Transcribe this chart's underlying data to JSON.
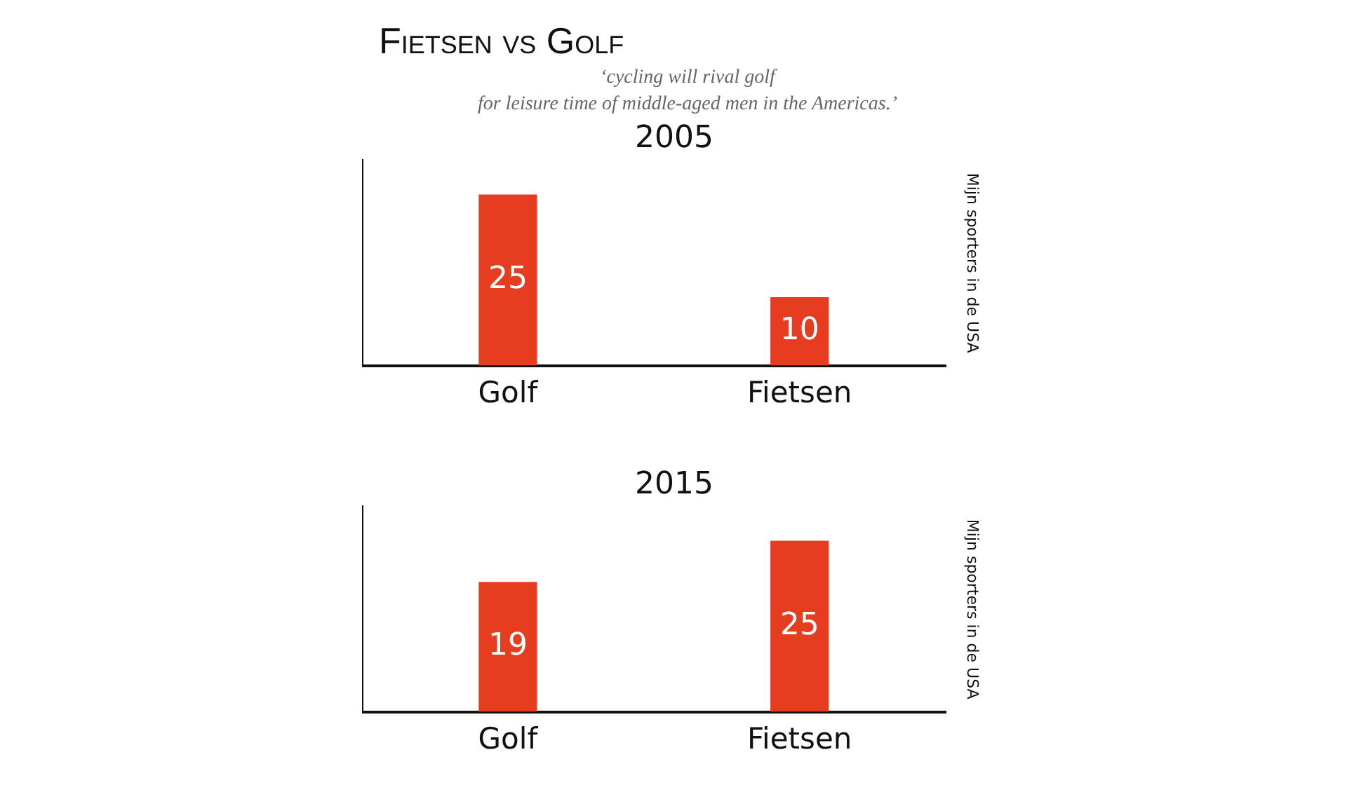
{
  "chart_data": [
    {
      "type": "bar",
      "title": "2005",
      "ylabel": "Mijn sporters in de USA",
      "annotations": [
        "Fietsen vs Golf",
        "‘cycling will rival golf\nfor leisure time of middle-aged men in the Americas.’"
      ],
      "categories": [
        "Golf",
        "Fietsen"
      ],
      "values": [
        25,
        10
      ],
      "color": "#e63c20",
      "data_labels": true,
      "tick_labels": "x",
      "grid": false,
      "legend": false
    },
    {
      "type": "bar",
      "title": "2015",
      "ylabel": "Mijn sporters in de USA",
      "categories": [
        "Golf",
        "Fietsen"
      ],
      "values": [
        19,
        25
      ],
      "color": "#e63c20",
      "data_labels": true,
      "tick_labels": "x",
      "grid": false,
      "legend": false
    }
  ]
}
